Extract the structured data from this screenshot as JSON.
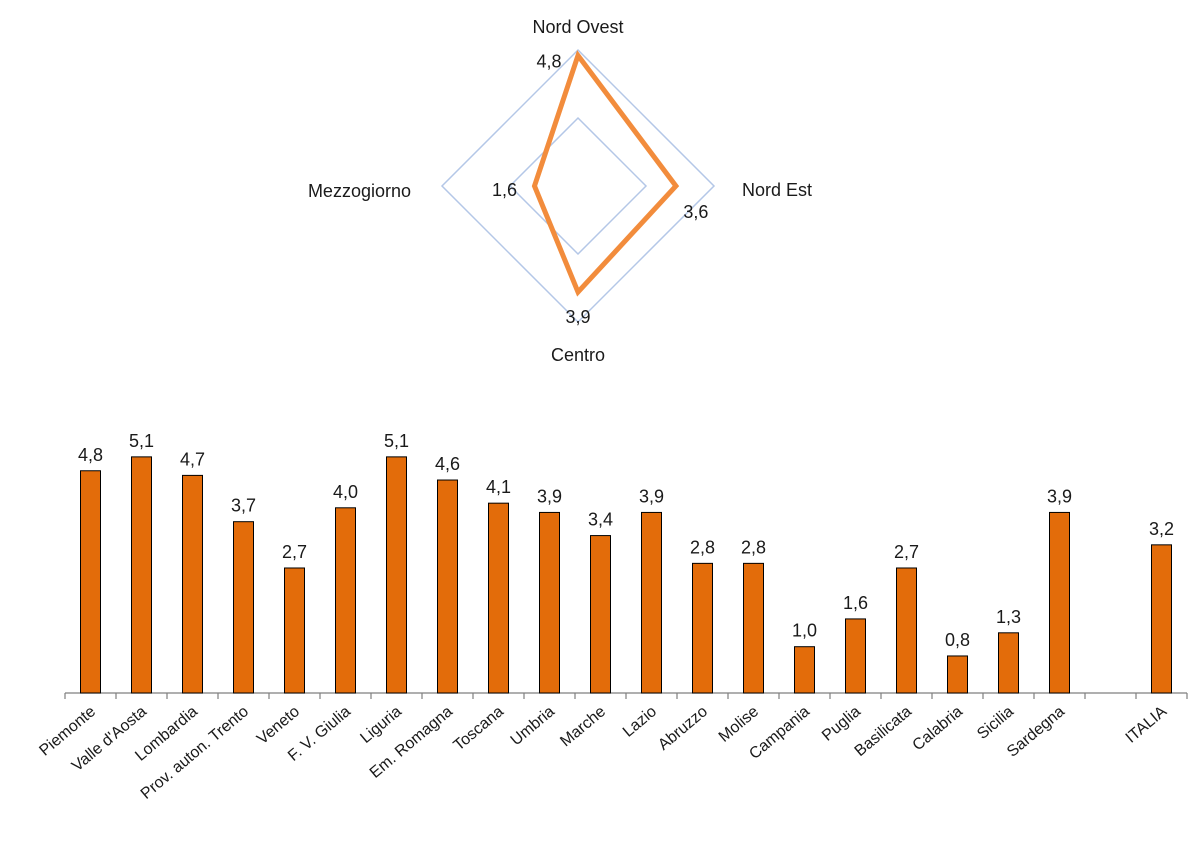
{
  "chart_data": [
    {
      "type": "radar",
      "axes": [
        "Nord Ovest",
        "Nord Est",
        "Centro",
        "Mezzogiorno"
      ],
      "values": [
        4.8,
        3.6,
        3.9,
        1.6
      ],
      "value_labels": [
        "4,8",
        "3,6",
        "3,9",
        "1,6"
      ],
      "rlim": [
        0,
        5.0
      ],
      "gridlines": 2,
      "series_color": "#f28c3c",
      "grid_color": "#b4c7e7"
    },
    {
      "type": "bar",
      "categories": [
        "Piemonte",
        "Valle d'Aosta",
        "Lombardia",
        "Prov. auton. Trento",
        "Veneto",
        "F. V. Giulia",
        "Liguria",
        "Em. Romagna",
        "Toscana",
        "Umbria",
        "Marche",
        "Lazio",
        "Abruzzo",
        "Molise",
        "Campania",
        "Puglia",
        "Basilicata",
        "Calabria",
        "Sicilia",
        "Sardegna",
        "",
        "ITALIA"
      ],
      "values": [
        4.8,
        5.1,
        4.7,
        3.7,
        2.7,
        4.0,
        5.1,
        4.6,
        4.1,
        3.9,
        3.4,
        3.9,
        2.8,
        2.8,
        1.0,
        1.6,
        2.7,
        0.8,
        1.3,
        3.9,
        null,
        3.2
      ],
      "value_labels": [
        "4,8",
        "5,1",
        "4,7",
        "3,7",
        "2,7",
        "4,0",
        "5,1",
        "4,6",
        "4,1",
        "3,9",
        "3,4",
        "3,9",
        "2,8",
        "2,8",
        "1,0",
        "1,6",
        "2,7",
        "0,8",
        "1,3",
        "3,9",
        "",
        "3,2"
      ],
      "ylim": [
        0,
        5.2
      ],
      "bar_color": "#e36c0a",
      "bar_stroke": "#000000"
    }
  ]
}
